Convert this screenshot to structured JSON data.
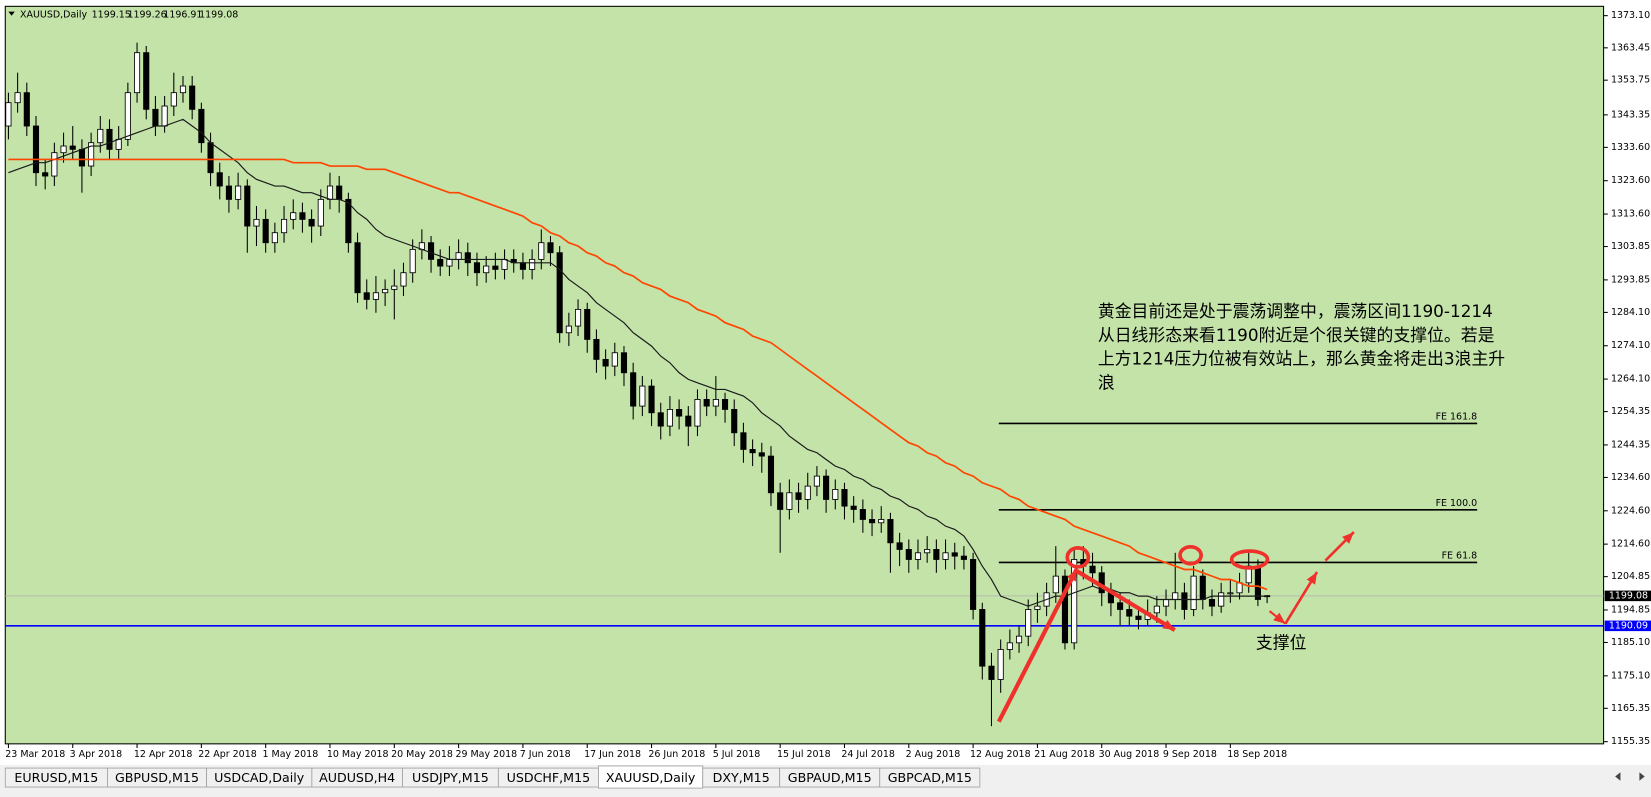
{
  "chart_data": {
    "type": "candlestick",
    "title": "XAUUSD,Daily",
    "background": "#c3e3a9",
    "bull_color": "#ffffff",
    "bear_color": "#000000",
    "categories": [
      "23 Mar 2018",
      null,
      null,
      null,
      null,
      null,
      null,
      "3 Apr 2018",
      null,
      null,
      null,
      null,
      null,
      null,
      "12 Apr 2018",
      null,
      null,
      null,
      null,
      null,
      null,
      "22 Apr 2018",
      null,
      null,
      null,
      null,
      null,
      null,
      "1 May 2018",
      null,
      null,
      null,
      null,
      null,
      null,
      "10 May 2018",
      null,
      null,
      null,
      null,
      null,
      null,
      "20 May 2018",
      null,
      null,
      null,
      null,
      null,
      null,
      "29 May 2018",
      null,
      null,
      null,
      null,
      null,
      null,
      "7 Jun 2018",
      null,
      null,
      null,
      null,
      null,
      null,
      "17 Jun 2018",
      null,
      null,
      null,
      null,
      null,
      null,
      "26 Jun 2018",
      null,
      null,
      null,
      null,
      null,
      null,
      "5 Jul 2018",
      null,
      null,
      null,
      null,
      null,
      null,
      "15 Jul 2018",
      null,
      null,
      null,
      null,
      null,
      null,
      "24 Jul 2018",
      null,
      null,
      null,
      null,
      null,
      null,
      "2 Aug 2018",
      null,
      null,
      null,
      null,
      null,
      null,
      "12 Aug 2018",
      null,
      null,
      null,
      null,
      null,
      null,
      "21 Aug 2018",
      null,
      null,
      null,
      null,
      null,
      null,
      "30 Aug 2018",
      null,
      null,
      null,
      null,
      null,
      null,
      "9 Sep 2018",
      null,
      null,
      null,
      null,
      null,
      null,
      "18 Sep 2018",
      null,
      null,
      null,
      null
    ],
    "candles": [
      [
        1340,
        1350,
        1336,
        1347
      ],
      [
        1347,
        1356,
        1344,
        1350
      ],
      [
        1350,
        1353,
        1337,
        1340
      ],
      [
        1340,
        1343,
        1322,
        1326
      ],
      [
        1326,
        1330,
        1321,
        1325
      ],
      [
        1325,
        1335,
        1322,
        1332
      ],
      [
        1332,
        1338,
        1329,
        1334
      ],
      [
        1334,
        1340,
        1330,
        1333
      ],
      [
        1333,
        1336,
        1320,
        1328
      ],
      [
        1328,
        1338,
        1325,
        1335
      ],
      [
        1335,
        1343,
        1332,
        1339
      ],
      [
        1339,
        1342,
        1330,
        1333
      ],
      [
        1333,
        1340,
        1330,
        1336
      ],
      [
        1336,
        1353,
        1334,
        1350
      ],
      [
        1350,
        1365,
        1347,
        1362
      ],
      [
        1362,
        1364,
        1342,
        1345
      ],
      [
        1345,
        1349,
        1337,
        1340
      ],
      [
        1340,
        1349,
        1338,
        1346
      ],
      [
        1346,
        1356,
        1343,
        1350
      ],
      [
        1350,
        1355,
        1347,
        1352
      ],
      [
        1352,
        1355,
        1342,
        1345
      ],
      [
        1345,
        1347,
        1332,
        1335
      ],
      [
        1335,
        1338,
        1322,
        1326
      ],
      [
        1326,
        1329,
        1318,
        1322
      ],
      [
        1322,
        1325,
        1314,
        1318
      ],
      [
        1318,
        1326,
        1315,
        1322
      ],
      [
        1322,
        1324,
        1302,
        1310
      ],
      [
        1310,
        1316,
        1304,
        1312
      ],
      [
        1312,
        1315,
        1302,
        1305
      ],
      [
        1305,
        1311,
        1302,
        1308
      ],
      [
        1308,
        1316,
        1305,
        1312
      ],
      [
        1312,
        1318,
        1309,
        1314
      ],
      [
        1314,
        1317,
        1308,
        1312
      ],
      [
        1312,
        1315,
        1305,
        1310
      ],
      [
        1310,
        1321,
        1307,
        1318
      ],
      [
        1318,
        1326,
        1315,
        1322
      ],
      [
        1322,
        1325,
        1314,
        1318
      ],
      [
        1318,
        1320,
        1302,
        1305
      ],
      [
        1305,
        1308,
        1287,
        1290
      ],
      [
        1290,
        1294,
        1285,
        1288
      ],
      [
        1288,
        1295,
        1284,
        1290
      ],
      [
        1290,
        1294,
        1286,
        1291
      ],
      [
        1291,
        1297,
        1282,
        1292
      ],
      [
        1292,
        1299,
        1289,
        1296
      ],
      [
        1296,
        1306,
        1293,
        1303
      ],
      [
        1303,
        1309,
        1300,
        1305
      ],
      [
        1305,
        1307,
        1296,
        1300
      ],
      [
        1300,
        1303,
        1295,
        1298
      ],
      [
        1298,
        1304,
        1295,
        1300
      ],
      [
        1300,
        1306,
        1297,
        1302
      ],
      [
        1302,
        1305,
        1295,
        1299
      ],
      [
        1299,
        1302,
        1292,
        1296
      ],
      [
        1296,
        1301,
        1293,
        1298
      ],
      [
        1298,
        1302,
        1294,
        1297
      ],
      [
        1297,
        1303,
        1294,
        1300
      ],
      [
        1300,
        1303,
        1296,
        1299
      ],
      [
        1299,
        1302,
        1294,
        1297
      ],
      [
        1297,
        1303,
        1294,
        1300
      ],
      [
        1300,
        1309,
        1297,
        1305
      ],
      [
        1305,
        1307,
        1298,
        1302
      ],
      [
        1302,
        1304,
        1275,
        1278
      ],
      [
        1278,
        1284,
        1274,
        1280
      ],
      [
        1280,
        1288,
        1277,
        1285
      ],
      [
        1285,
        1287,
        1272,
        1276
      ],
      [
        1276,
        1279,
        1266,
        1270
      ],
      [
        1270,
        1273,
        1264,
        1268
      ],
      [
        1268,
        1275,
        1265,
        1272
      ],
      [
        1272,
        1274,
        1262,
        1266
      ],
      [
        1266,
        1269,
        1252,
        1256
      ],
      [
        1256,
        1265,
        1253,
        1262
      ],
      [
        1262,
        1264,
        1250,
        1254
      ],
      [
        1254,
        1257,
        1246,
        1250
      ],
      [
        1250,
        1259,
        1247,
        1255
      ],
      [
        1255,
        1258,
        1249,
        1253
      ],
      [
        1253,
        1256,
        1244,
        1250
      ],
      [
        1250,
        1261,
        1247,
        1258
      ],
      [
        1258,
        1261,
        1253,
        1256
      ],
      [
        1256,
        1265,
        1253,
        1258
      ],
      [
        1258,
        1260,
        1251,
        1255
      ],
      [
        1255,
        1258,
        1244,
        1248
      ],
      [
        1248,
        1251,
        1239,
        1243
      ],
      [
        1243,
        1246,
        1238,
        1242
      ],
      [
        1242,
        1245,
        1236,
        1241
      ],
      [
        1241,
        1244,
        1226,
        1230
      ],
      [
        1230,
        1233,
        1212,
        1225
      ],
      [
        1225,
        1234,
        1222,
        1230
      ],
      [
        1230,
        1233,
        1224,
        1228
      ],
      [
        1228,
        1236,
        1225,
        1232
      ],
      [
        1232,
        1238,
        1229,
        1235
      ],
      [
        1235,
        1237,
        1224,
        1228
      ],
      [
        1228,
        1234,
        1225,
        1231
      ],
      [
        1231,
        1233,
        1222,
        1226
      ],
      [
        1226,
        1229,
        1221,
        1225
      ],
      [
        1225,
        1228,
        1218,
        1222
      ],
      [
        1222,
        1225,
        1217,
        1221
      ],
      [
        1221,
        1226,
        1218,
        1222
      ],
      [
        1222,
        1224,
        1206,
        1215
      ],
      [
        1215,
        1218,
        1208,
        1213
      ],
      [
        1213,
        1216,
        1206,
        1210
      ],
      [
        1210,
        1216,
        1207,
        1212
      ],
      [
        1212,
        1217,
        1209,
        1213
      ],
      [
        1213,
        1216,
        1206,
        1210
      ],
      [
        1210,
        1216,
        1207,
        1212
      ],
      [
        1212,
        1215,
        1207,
        1211
      ],
      [
        1211,
        1214,
        1207,
        1210
      ],
      [
        1210,
        1212,
        1192,
        1195
      ],
      [
        1195,
        1197,
        1174,
        1178
      ],
      [
        1178,
        1182,
        1160,
        1174
      ],
      [
        1174,
        1186,
        1170,
        1183
      ],
      [
        1183,
        1189,
        1180,
        1185
      ],
      [
        1185,
        1190,
        1182,
        1187
      ],
      [
        1187,
        1198,
        1184,
        1195
      ],
      [
        1195,
        1200,
        1191,
        1196
      ],
      [
        1196,
        1203,
        1193,
        1200
      ],
      [
        1200,
        1214,
        1197,
        1205
      ],
      [
        1205,
        1207,
        1183,
        1185
      ],
      [
        1185,
        1213,
        1183,
        1210
      ],
      [
        1210,
        1214,
        1204,
        1208
      ],
      [
        1208,
        1212,
        1202,
        1206
      ],
      [
        1206,
        1208,
        1196,
        1200
      ],
      [
        1200,
        1203,
        1193,
        1197
      ],
      [
        1197,
        1200,
        1190,
        1195
      ],
      [
        1195,
        1198,
        1190,
        1193
      ],
      [
        1193,
        1196,
        1189,
        1192
      ],
      [
        1192,
        1198,
        1190,
        1194
      ],
      [
        1194,
        1199,
        1191,
        1196
      ],
      [
        1196,
        1201,
        1193,
        1198
      ],
      [
        1198,
        1212,
        1195,
        1200
      ],
      [
        1200,
        1203,
        1192,
        1195
      ],
      [
        1195,
        1208,
        1193,
        1205
      ],
      [
        1205,
        1207,
        1195,
        1198
      ],
      [
        1198,
        1201,
        1193,
        1196
      ],
      [
        1196,
        1203,
        1194,
        1200
      ],
      [
        1200,
        1204,
        1197,
        1200
      ],
      [
        1200,
        1206,
        1198,
        1203
      ],
      [
        1203,
        1212,
        1200,
        1208
      ],
      [
        1208,
        1210,
        1196,
        1198
      ],
      [
        1199.15,
        1199.26,
        1196.91,
        1199.08
      ]
    ],
    "lines": [
      {
        "color": "#1a1a1a",
        "values": [
          1326,
          1327,
          1328,
          1329,
          1329,
          1330,
          1331,
          1332,
          1333,
          1334,
          1334,
          1335,
          1336,
          1337,
          1338,
          1339,
          1340,
          1340,
          1341,
          1342,
          1340,
          1338,
          1335,
          1333,
          1331,
          1329,
          1326,
          1324,
          1323,
          1322,
          1322,
          1321,
          1320,
          1320,
          1319,
          1318,
          1318,
          1317,
          1314,
          1312,
          1309,
          1307,
          1306,
          1305,
          1304,
          1303,
          1302,
          1301,
          1300,
          1300,
          1300,
          1300,
          1300,
          1300,
          1300,
          1299,
          1299,
          1299,
          1299,
          1299,
          1297,
          1294,
          1292,
          1290,
          1287,
          1285,
          1283,
          1281,
          1278,
          1276,
          1274,
          1271,
          1269,
          1266,
          1264,
          1263,
          1262,
          1261,
          1261,
          1260,
          1259,
          1257,
          1254,
          1252,
          1250,
          1247,
          1245,
          1243,
          1242,
          1240,
          1238,
          1237,
          1235,
          1234,
          1232,
          1231,
          1229,
          1228,
          1226,
          1225,
          1223,
          1222,
          1220,
          1219,
          1217,
          1213,
          1208,
          1204,
          1199,
          1198,
          1197,
          1196,
          1197,
          1198,
          1199,
          1199,
          1200,
          1201,
          1202,
          1201,
          1201,
          1200,
          1200,
          1199,
          1199,
          1198,
          1198,
          1198,
          1198,
          1198,
          1198,
          1199,
          1199,
          1199,
          1199,
          1199,
          1199,
          1199
        ]
      },
      {
        "color": "#ff4500",
        "values": [
          1330,
          1330,
          1330,
          1330,
          1330,
          1330,
          1330,
          1330,
          1330,
          1330,
          1330,
          1330,
          1330,
          1330,
          1330,
          1330,
          1330,
          1330,
          1330,
          1330,
          1330,
          1330,
          1330,
          1330,
          1330,
          1330,
          1330,
          1330,
          1330,
          1330,
          1330,
          1329,
          1329,
          1329,
          1329,
          1328,
          1328,
          1328,
          1328,
          1327,
          1327,
          1327,
          1326,
          1325,
          1324,
          1323,
          1322,
          1321,
          1320,
          1320,
          1319,
          1318,
          1317,
          1316,
          1315,
          1314,
          1313,
          1311,
          1310,
          1308,
          1307,
          1305,
          1304,
          1302,
          1301,
          1299,
          1298,
          1296,
          1295,
          1293,
          1292,
          1291,
          1289,
          1288,
          1287,
          1285,
          1284,
          1283,
          1281,
          1280,
          1279,
          1277,
          1276,
          1275,
          1273,
          1271,
          1269,
          1267,
          1265,
          1263,
          1261,
          1259,
          1257,
          1255,
          1253,
          1251,
          1249,
          1247,
          1245,
          1244,
          1242,
          1241,
          1239,
          1238,
          1236,
          1235,
          1233,
          1232,
          1231,
          1229,
          1228,
          1226,
          1225,
          1224,
          1223,
          1222,
          1220,
          1219,
          1218,
          1217,
          1216,
          1215,
          1214,
          1212,
          1211,
          1210,
          1209,
          1208,
          1207,
          1207,
          1206,
          1205,
          1204,
          1204,
          1203,
          1202,
          1202,
          1201
        ]
      }
    ],
    "ylim": [
      1154.7,
      1375.9
    ],
    "yticks": [
      {
        "value": 1373.1,
        "label": "1373.10"
      },
      {
        "value": 1363.45,
        "label": "1363.45"
      },
      {
        "value": 1353.75,
        "label": "1353.75"
      },
      {
        "value": 1343.35,
        "label": "1343.35"
      },
      {
        "value": 1333.6,
        "label": "1333.60"
      },
      {
        "value": 1323.6,
        "label": "1323.60"
      },
      {
        "value": 1313.6,
        "label": "1313.60"
      },
      {
        "value": 1303.85,
        "label": "1303.85"
      },
      {
        "value": 1293.85,
        "label": "1293.85"
      },
      {
        "value": 1284.1,
        "label": "1284.10"
      },
      {
        "value": 1274.1,
        "label": "1274.10"
      },
      {
        "value": 1264.1,
        "label": "1264.10"
      },
      {
        "value": 1254.35,
        "label": "1254.35"
      },
      {
        "value": 1244.35,
        "label": "1244.35"
      },
      {
        "value": 1234.6,
        "label": "1234.60"
      },
      {
        "value": 1224.6,
        "label": "1224.60"
      },
      {
        "value": 1214.6,
        "label": "1214.60"
      },
      {
        "value": 1204.85,
        "label": "1204.85"
      },
      {
        "value": 1194.85,
        "label": "1194.85"
      },
      {
        "value": 1185.1,
        "label": "1185.10"
      },
      {
        "value": 1175.1,
        "label": "1175.10"
      },
      {
        "value": 1165.35,
        "label": "1165.35"
      },
      {
        "value": 1155.35,
        "label": "1155.35"
      }
    ],
    "price_lines": [
      {
        "value": 1199.08,
        "color": "#000000",
        "line_color": "#b0b0b0"
      },
      {
        "value": 1190.09,
        "color": "#0000ff",
        "line_color": "#0000ff"
      }
    ],
    "levels": [
      {
        "label": "FE 161.8",
        "value": 1250.8
      },
      {
        "label": "FE 100.0",
        "value": 1224.9
      },
      {
        "label": "FE 61.8",
        "value": 1209.1
      }
    ],
    "annotation": [
      "黄金目前还是处于震荡调整中，震荡区间1190-1214",
      "从日线形态来看1190附近是个很关键的支撑位。若是",
      "上方1214压力位被有效站上，那么黄金将走出3浪主升",
      "浪"
    ],
    "support_label": "支撑位"
  },
  "tabs": [
    "EURUSD,M15",
    "GBPUSD,M15",
    "USDCAD,Daily",
    "AUDUSD,H4",
    "USDJPY,M15",
    "USDCHF,M15",
    "XAUUSD,Daily",
    "DXY,M15",
    "GBPAUD,M15",
    "GBPCAD,M15"
  ],
  "active_tab": 6
}
